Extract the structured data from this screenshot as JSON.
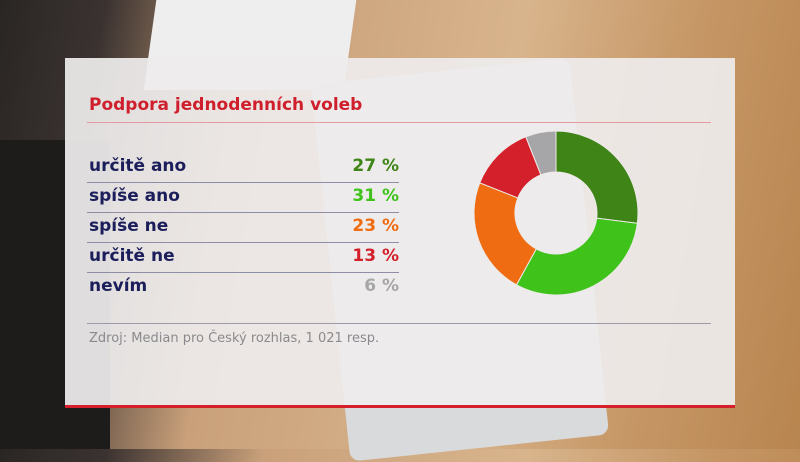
{
  "chart_data": {
    "type": "pie",
    "donut": true,
    "title": "Podpora jednodenních voleb",
    "categories": [
      "určitě ano",
      "spíše ano",
      "spíše ne",
      "určitě ne",
      "nevím"
    ],
    "values": [
      27,
      31,
      23,
      13,
      6
    ],
    "value_labels": [
      "27 %",
      "31 %",
      "23 %",
      "13 %",
      "6 %"
    ],
    "colors": [
      "#3e8416",
      "#3fc31a",
      "#ef6c12",
      "#d3202a",
      "#a6a6a8"
    ],
    "source": "Zdroj: Median pro Český rozhlas, 1 021 resp."
  }
}
